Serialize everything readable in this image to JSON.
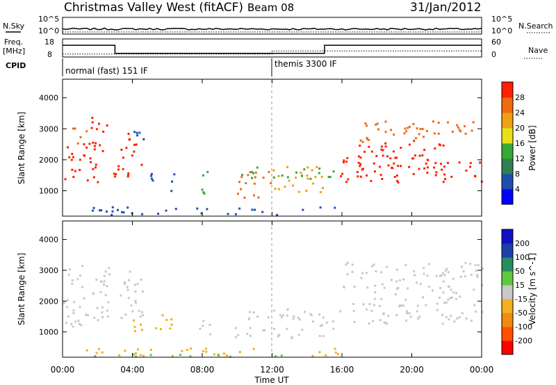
{
  "header": {
    "title": "Christmas Valley West (fitACF)",
    "beam": "Beam 08",
    "date": "31/Jan/2012"
  },
  "top_panels": {
    "nsky_label": "N.Sky",
    "nsky_ticks": [
      "10^5",
      "10^0"
    ],
    "nsearch_label": "N.Search",
    "nsearch_ticks": [
      "10^5",
      "10^0"
    ],
    "freq_label": "Freq.",
    "freq_unit": "[MHz]",
    "freq_ticks": [
      "18",
      "8"
    ],
    "nave_label": "Nave",
    "nave_ticks": [
      "60",
      "0"
    ],
    "cpid_label": "CPID",
    "cpid_modes": [
      {
        "label": "normal (fast) 151 IF",
        "start_hour": 0,
        "end_hour": 12
      },
      {
        "label": "themis 3300 IF",
        "start_hour": 12,
        "end_hour": 24
      }
    ]
  },
  "time_axis": {
    "label": "Time UT",
    "ticks": [
      "00:00",
      "04:00",
      "08:00",
      "12:00",
      "16:00",
      "20:00",
      "00:00"
    ]
  },
  "chart_data": [
    {
      "type": "line",
      "name": "nsky_nsearch",
      "x_range_hours": [
        0,
        24
      ],
      "note_series": [
        {
          "name": "N.Sky",
          "style": "solid",
          "x": [
            0,
            2,
            4,
            6,
            8,
            10,
            12,
            14,
            16,
            18,
            20,
            22,
            24
          ],
          "y_log10": [
            0.4,
            0.5,
            0.5,
            0.4,
            0.4,
            0.5,
            0.5,
            0.4,
            0.5,
            0.5,
            0.4,
            0.5,
            0.5
          ]
        },
        {
          "name": "N.Search",
          "style": "dotted",
          "x": [
            0,
            24
          ],
          "y_log10": [
            0.1,
            0.1
          ]
        }
      ]
    },
    {
      "type": "line",
      "name": "freq_nave",
      "series": [
        {
          "name": "Freq.",
          "style": "solid",
          "x": [
            0,
            3,
            3,
            15,
            15,
            24
          ],
          "y": [
            14.5,
            14.5,
            10,
            10,
            14.5,
            14.5
          ]
        },
        {
          "name": "Nave",
          "style": "dotted",
          "x": [
            0,
            12,
            12,
            24
          ],
          "y": [
            10,
            10,
            20,
            20
          ]
        }
      ]
    },
    {
      "type": "heatmap",
      "name": "power",
      "ylabel": "Slant Range [km]",
      "yticks": [
        1000,
        2000,
        3000,
        4000
      ],
      "ylim": [
        180,
        4600
      ],
      "xlim": [
        0,
        24
      ],
      "colorbar": {
        "label": "Power [dB]",
        "ticks": [
          "28",
          "24",
          "20",
          "16",
          "12",
          "8",
          "4"
        ],
        "colors": [
          "#0000ff",
          "#1e4fb0",
          "#2f7f4f",
          "#36a836",
          "#e8e018",
          "#f0a010",
          "#f06a10",
          "#ff2000"
        ]
      },
      "blobs": [
        {
          "t0": 0.0,
          "t1": 2.0,
          "r0": 1200,
          "r1": 2700,
          "c": "#ff2000"
        },
        {
          "t0": 0.5,
          "t1": 1.5,
          "r0": 2500,
          "r1": 3100,
          "c": "#f06a10"
        },
        {
          "t0": 1.5,
          "t1": 2.8,
          "r0": 2300,
          "r1": 3400,
          "c": "#ff2000"
        },
        {
          "t0": 2.9,
          "t1": 4.5,
          "r0": 1400,
          "r1": 2900,
          "c": "#ff2000"
        },
        {
          "t0": 3.8,
          "t1": 4.6,
          "r0": 2200,
          "r1": 3000,
          "c": "#1e4fb0"
        },
        {
          "t0": 5.0,
          "t1": 6.4,
          "r0": 1000,
          "r1": 1600,
          "c": "#1e4fb0"
        },
        {
          "t0": 7.7,
          "t1": 8.4,
          "r0": 900,
          "r1": 1700,
          "c": "#36a836"
        },
        {
          "t0": 9.8,
          "t1": 11.9,
          "r0": 800,
          "r1": 1700,
          "c": "#f06a10"
        },
        {
          "t0": 12.0,
          "t1": 14.9,
          "r0": 900,
          "r1": 1800,
          "c": "#f0a010"
        },
        {
          "t0": 10.0,
          "t1": 15.5,
          "r0": 1400,
          "r1": 1800,
          "c": "#36a836"
        },
        {
          "t0": 1.2,
          "t1": 15.8,
          "r0": 250,
          "r1": 500,
          "c": "#1e4fb0"
        },
        {
          "t0": 15.8,
          "t1": 24.0,
          "r0": 1300,
          "r1": 2000,
          "c": "#ff2000"
        },
        {
          "t0": 16.0,
          "t1": 22.0,
          "r0": 1800,
          "r1": 2700,
          "c": "#ff2000"
        },
        {
          "t0": 17.0,
          "t1": 24.0,
          "r0": 2600,
          "r1": 3300,
          "c": "#f06a10"
        }
      ]
    },
    {
      "type": "heatmap",
      "name": "velocity",
      "ylabel": "Slant Range [km]",
      "yticks": [
        1000,
        2000,
        3000,
        4000
      ],
      "ylim": [
        180,
        4600
      ],
      "xlim": [
        0,
        24
      ],
      "colorbar": {
        "label": "Velocity [m s^-1]",
        "ticks": [
          "200",
          "100",
          "50",
          "15",
          "-15",
          "-50",
          "-100",
          "-200"
        ],
        "colors": [
          "#ff0000",
          "#ff5000",
          "#f08a10",
          "#f0b020",
          "#c8c8c8",
          "#5ec840",
          "#2a8a60",
          "#1a3fa8",
          "#1010c8"
        ]
      },
      "blobs": [
        {
          "t0": 0.0,
          "t1": 2.8,
          "r0": 1200,
          "r1": 3300,
          "c": "#c8c8c8"
        },
        {
          "t0": 2.9,
          "t1": 4.6,
          "r0": 1400,
          "r1": 3000,
          "c": "#c8c8c8"
        },
        {
          "t0": 3.6,
          "t1": 4.5,
          "r0": 900,
          "r1": 1600,
          "c": "#f0b020"
        },
        {
          "t0": 5.0,
          "t1": 6.4,
          "r0": 1000,
          "r1": 1600,
          "c": "#f0b020"
        },
        {
          "t0": 7.7,
          "t1": 8.4,
          "r0": 900,
          "r1": 1700,
          "c": "#c8c8c8"
        },
        {
          "t0": 9.8,
          "t1": 15.5,
          "r0": 800,
          "r1": 1800,
          "c": "#c8c8c8"
        },
        {
          "t0": 1.2,
          "t1": 15.8,
          "r0": 250,
          "r1": 500,
          "c": "#f0b020"
        },
        {
          "t0": 1.2,
          "t1": 15.8,
          "r0": 180,
          "r1": 300,
          "c": "#5ec840"
        },
        {
          "t0": 15.8,
          "t1": 24.0,
          "r0": 1300,
          "r1": 2100,
          "c": "#c8c8c8"
        },
        {
          "t0": 16.0,
          "t1": 24.0,
          "r0": 2100,
          "r1": 3300,
          "c": "#c8c8c8"
        }
      ]
    }
  ]
}
